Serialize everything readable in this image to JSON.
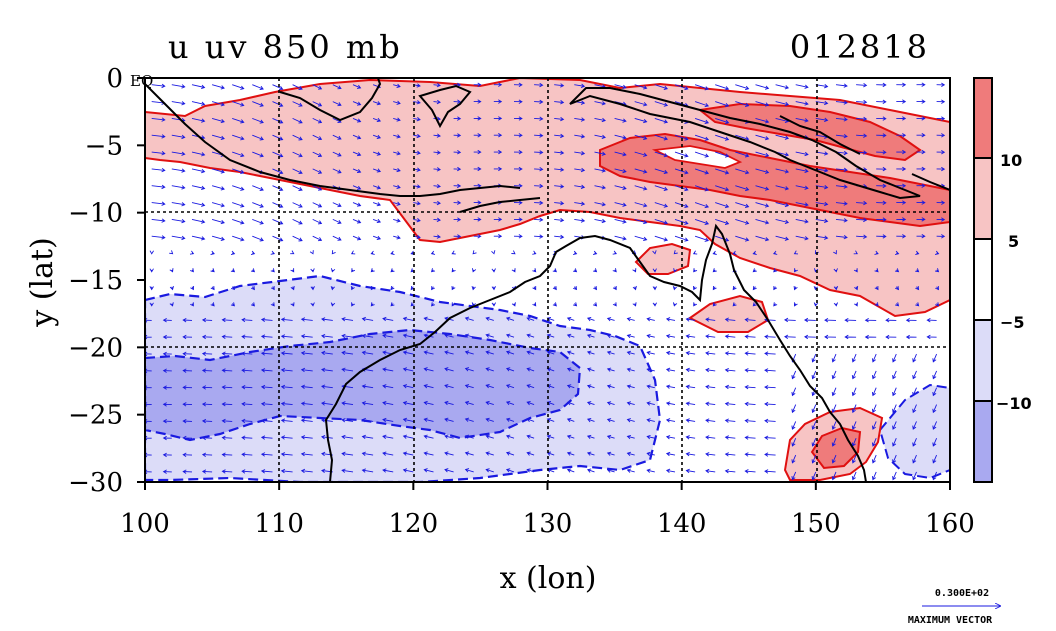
{
  "title_left": "u uv 850 mb",
  "title_right": "012818",
  "eq_label": "EQ",
  "x_axis": {
    "label": "x (lon)",
    "ticks": [
      100,
      110,
      120,
      130,
      140,
      150,
      160
    ],
    "range": [
      100,
      160
    ]
  },
  "y_axis": {
    "label": "y (lat)",
    "ticks": [
      "0",
      "−5",
      "−10",
      "−15",
      "−20",
      "−25",
      "−30"
    ],
    "tick_values": [
      0,
      -5,
      -10,
      -15,
      -20,
      -25,
      -30
    ],
    "range": [
      -30,
      0
    ]
  },
  "colorbar": {
    "labels": [
      "10",
      "5",
      "−5",
      "−10"
    ],
    "levels": [
      -10,
      -5,
      5,
      10
    ],
    "colors": [
      "#ef7b7b",
      "#f7c4c4",
      "#ffffff",
      "#dcdcf8",
      "#a9a9f0"
    ]
  },
  "vector_legend": {
    "value": "0.300E+02",
    "label": "MAXIMUM VECTOR"
  },
  "colors": {
    "positive_contour": "#e01010",
    "negative_contour": "#1a1ae0",
    "vector": "#1a1ae0",
    "coast": "#000000",
    "grid": "#000000"
  }
}
